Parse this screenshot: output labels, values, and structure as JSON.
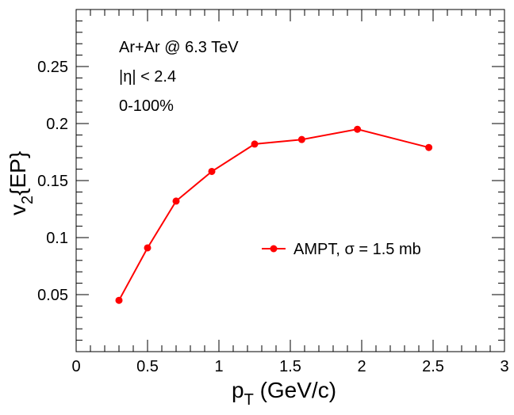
{
  "chart_data": {
    "type": "line",
    "xlabel": "p",
    "xlabel_sub": "T",
    "xlabel_rest": " (GeV/c)",
    "ylabel": "v",
    "ylabel_sub": "2",
    "ylabel_rest": "{EP}",
    "xlim": [
      0,
      3
    ],
    "ylim": [
      0,
      0.3
    ],
    "x_ticks": [
      0,
      0.5,
      1,
      1.5,
      2,
      2.5,
      3
    ],
    "x_tick_labels": [
      "0",
      "0.5",
      "1",
      "1.5",
      "2",
      "2.5",
      "3"
    ],
    "y_ticks": [
      0.05,
      0.1,
      0.15,
      0.2,
      0.25
    ],
    "y_tick_labels": [
      "0.05",
      "0.1",
      "0.15",
      "0.2",
      "0.25"
    ],
    "annotations": [
      "Ar+Ar @ 6.3 TeV",
      "|η| < 2.4",
      "0-100%"
    ],
    "legend_position": "center-right",
    "series": [
      {
        "name": "AMPT, σ = 1.5 mb",
        "color": "#ff0000",
        "marker": "circle",
        "x": [
          0.3,
          0.5,
          0.7,
          0.95,
          1.25,
          1.58,
          1.97,
          2.47
        ],
        "y": [
          0.045,
          0.091,
          0.132,
          0.158,
          0.182,
          0.186,
          0.195,
          0.179
        ]
      }
    ]
  }
}
